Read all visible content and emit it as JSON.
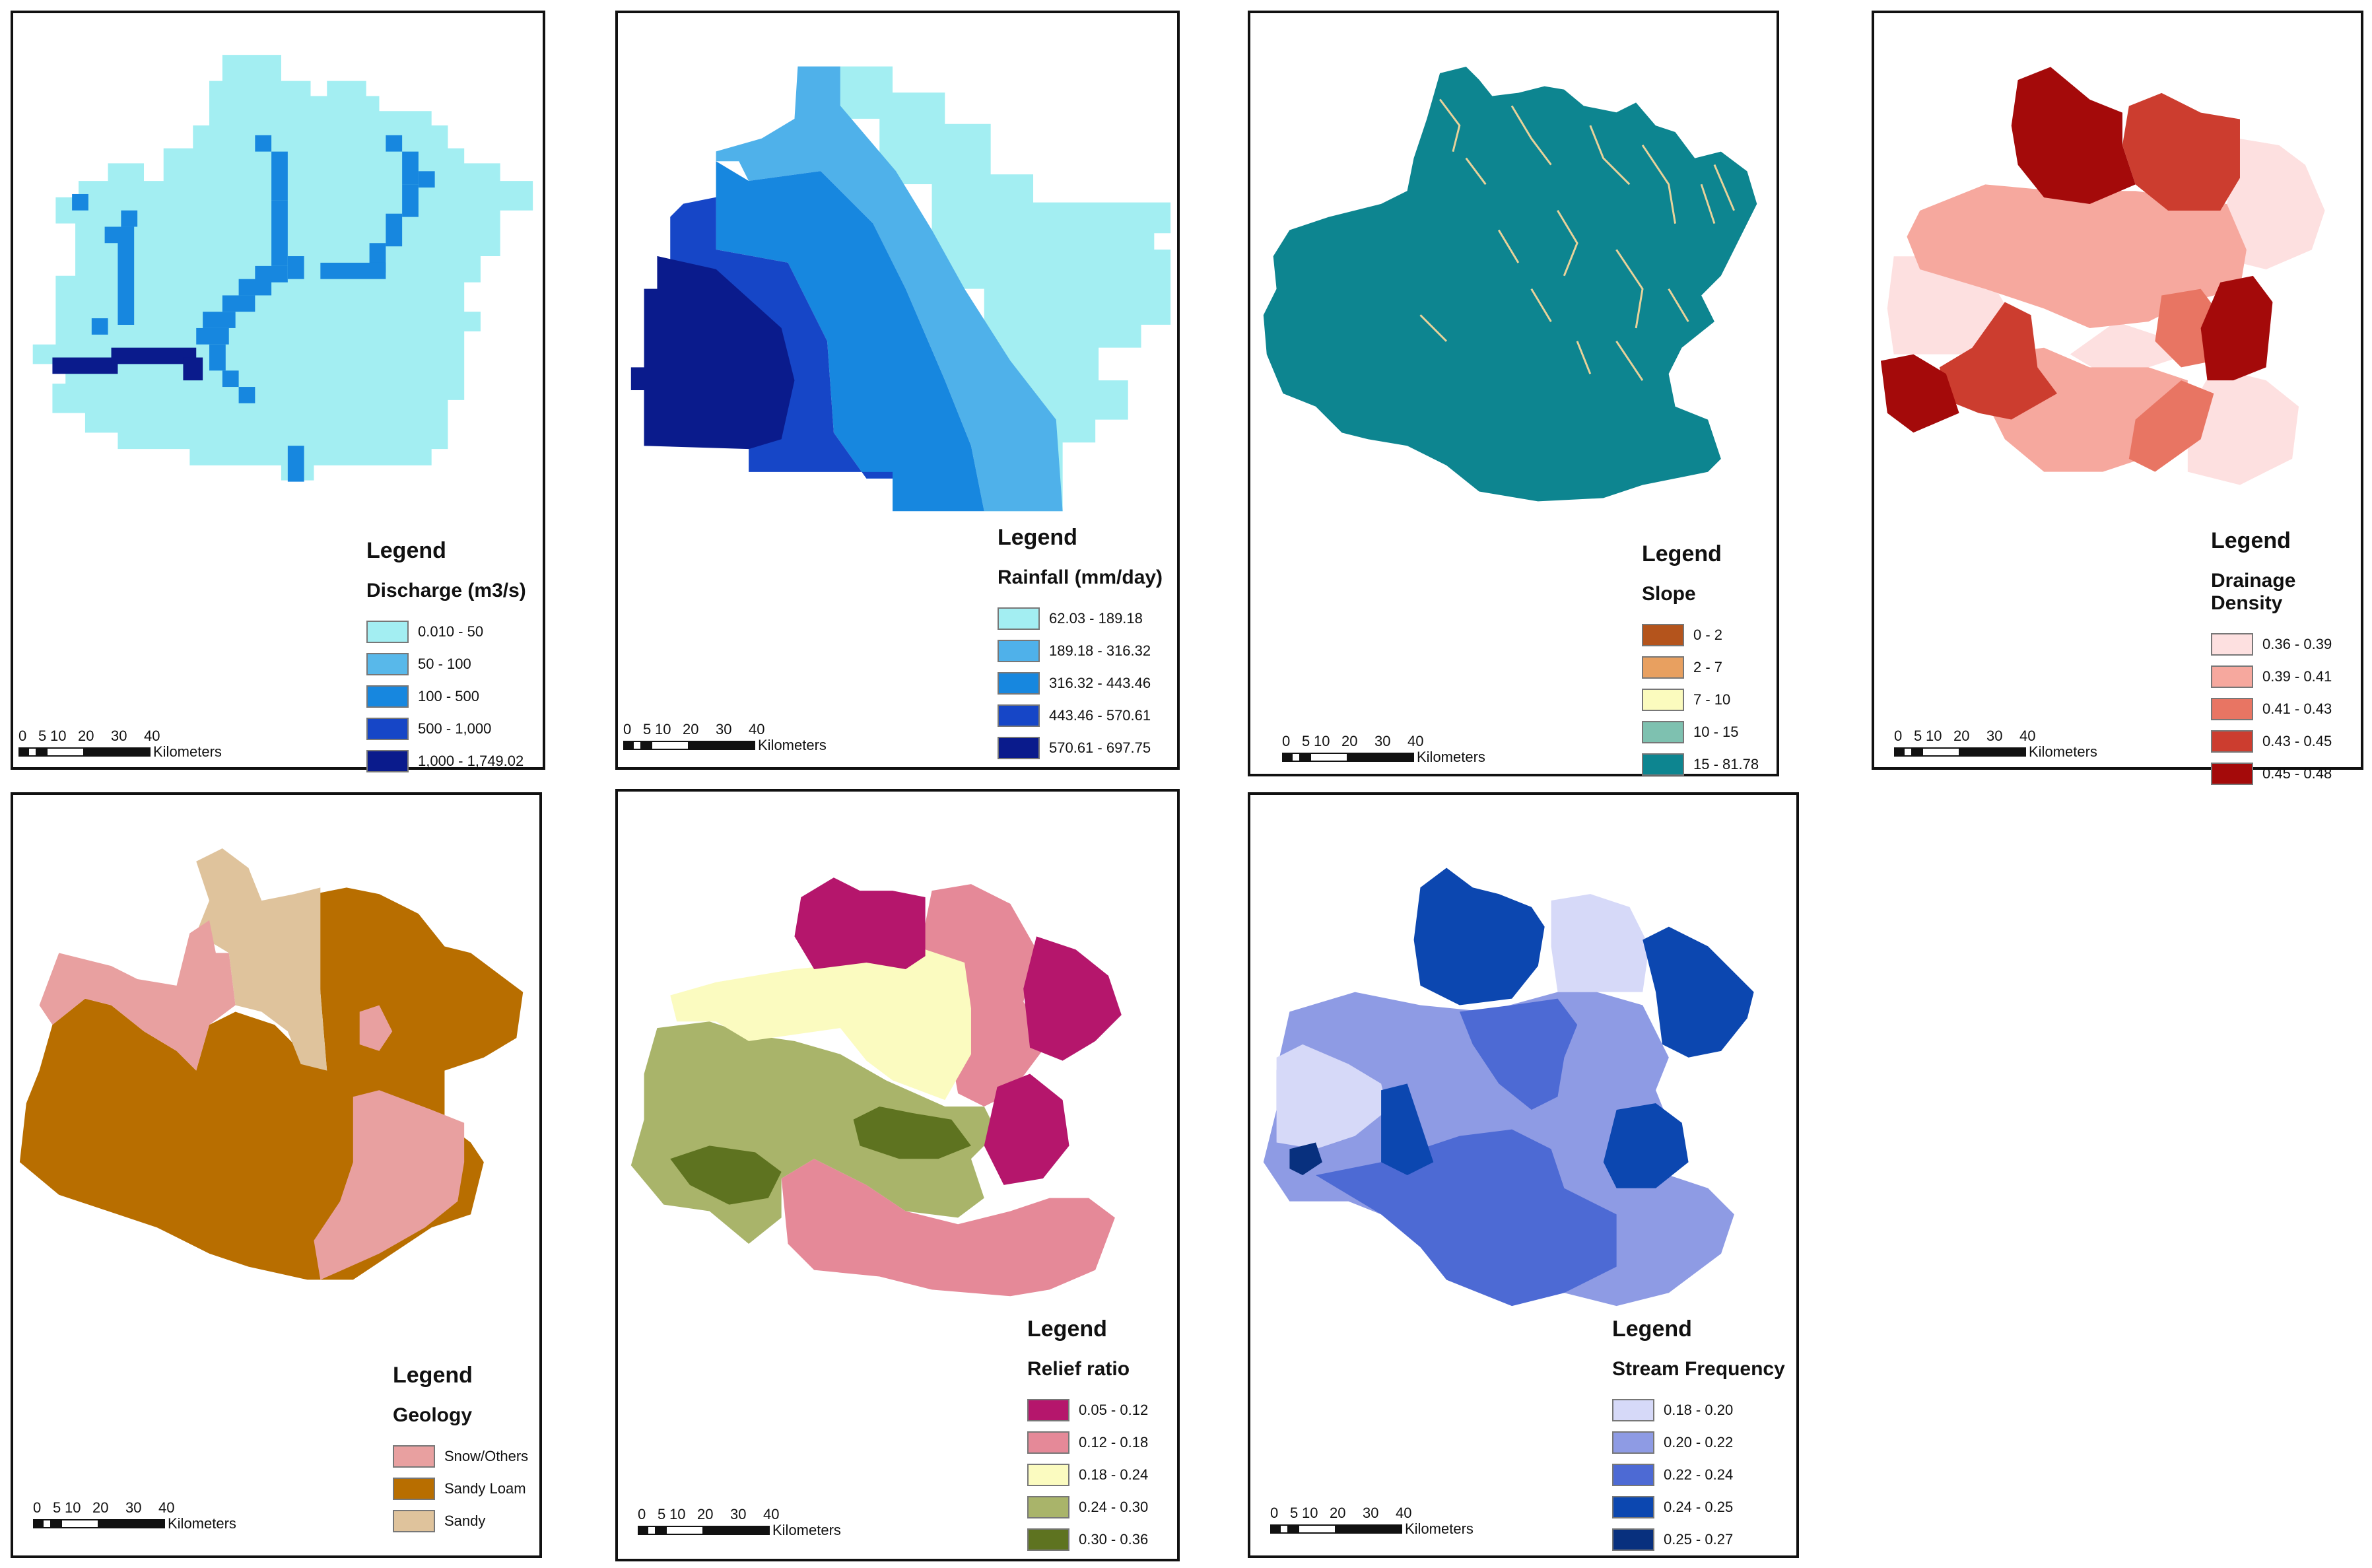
{
  "scale_ticks": [
    "0",
    "5",
    "10",
    "20",
    "30",
    "40"
  ],
  "scale_units": "Kilometers",
  "legend_heading": "Legend",
  "panels": [
    {
      "id": "discharge",
      "legend_title": "Discharge (m3/s)",
      "classes": [
        {
          "label": "0.010 - 50",
          "color": "#a3eef2"
        },
        {
          "label": "50 - 100",
          "color": "#58b8ea"
        },
        {
          "label": "100 - 500",
          "color": "#1787df"
        },
        {
          "label": "500 - 1,000",
          "color": "#1646c7"
        },
        {
          "label": "1,000 - 1,749.02",
          "color": "#0a1b8c"
        }
      ]
    },
    {
      "id": "rainfall",
      "legend_title": "Rainfall (mm/day)",
      "classes": [
        {
          "label": "62.03 - 189.18",
          "color": "#a3eef2"
        },
        {
          "label": "189.18 - 316.32",
          "color": "#4fb1ea"
        },
        {
          "label": "316.32 - 443.46",
          "color": "#1787df"
        },
        {
          "label": "443.46 - 570.61",
          "color": "#1646c7"
        },
        {
          "label": "570.61 - 697.75",
          "color": "#0a1b8c"
        }
      ]
    },
    {
      "id": "slope",
      "legend_title": "Slope",
      "classes": [
        {
          "label": "0 - 2",
          "color": "#b4541c"
        },
        {
          "label": "2 - 7",
          "color": "#e8a060"
        },
        {
          "label": "7 - 10",
          "color": "#fbfbbe"
        },
        {
          "label": "10 - 15",
          "color": "#7ec1b0"
        },
        {
          "label": "15 - 81.78",
          "color": "#0d8590"
        }
      ]
    },
    {
      "id": "drainage-density",
      "legend_title": "Drainage Density",
      "classes": [
        {
          "label": "0.36 - 0.39",
          "color": "#fde0e0"
        },
        {
          "label": "0.39 - 0.41",
          "color": "#f6a89e"
        },
        {
          "label": "0.41 - 0.43",
          "color": "#e87563"
        },
        {
          "label": "0.43 - 0.45",
          "color": "#cc3d2f"
        },
        {
          "label": "0.45 - 0.48",
          "color": "#a40a0a"
        }
      ]
    },
    {
      "id": "geology",
      "legend_title": "Geology",
      "classes": [
        {
          "label": "Snow/Others",
          "color": "#e8a0a0"
        },
        {
          "label": "Sandy Loam",
          "color": "#b86e00"
        },
        {
          "label": "Sandy",
          "color": "#dfc39c"
        }
      ]
    },
    {
      "id": "relief-ratio",
      "legend_title": "Relief ratio",
      "classes": [
        {
          "label": "0.05 - 0.12",
          "color": "#b5166c"
        },
        {
          "label": "0.12 - 0.18",
          "color": "#e58998"
        },
        {
          "label": "0.18 - 0.24",
          "color": "#fbfbc0"
        },
        {
          "label": "0.24 - 0.30",
          "color": "#a9b46a"
        },
        {
          "label": "0.30 - 0.36",
          "color": "#5e7320"
        }
      ]
    },
    {
      "id": "stream-frequency",
      "legend_title": "Stream Frequency",
      "classes": [
        {
          "label": "0.18 - 0.20",
          "color": "#d6d9f8"
        },
        {
          "label": "0.20 - 0.22",
          "color": "#8e9be4"
        },
        {
          "label": "0.22 - 0.24",
          "color": "#4d6ad4"
        },
        {
          "label": "0.24 - 0.25",
          "color": "#0c47b0"
        },
        {
          "label": "0.25 - 0.27",
          "color": "#08307e"
        }
      ]
    }
  ]
}
